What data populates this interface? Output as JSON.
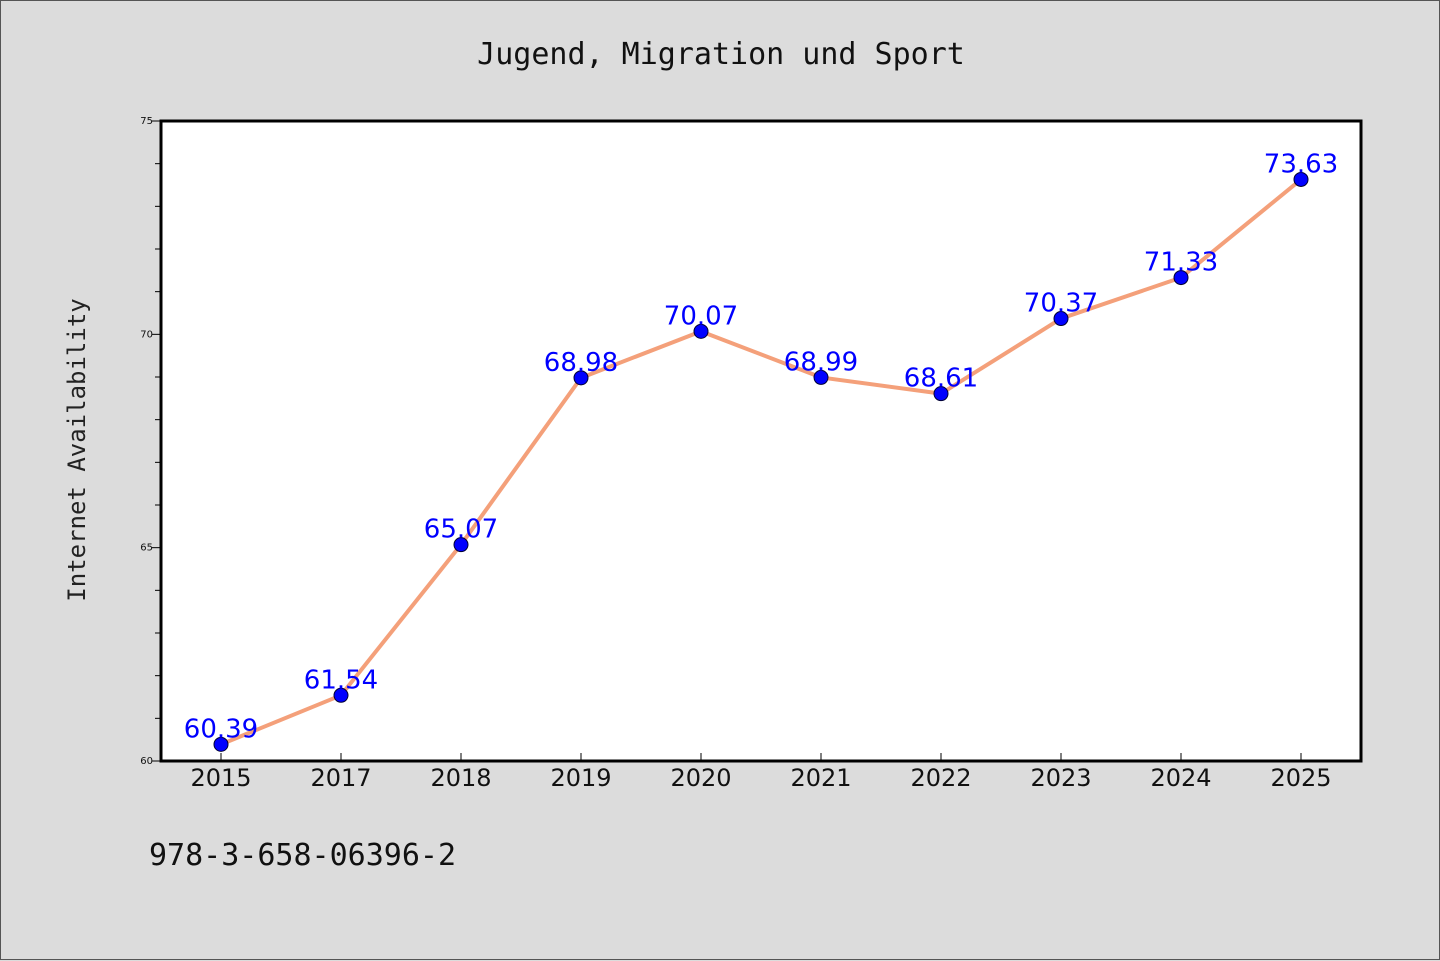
{
  "chart_data": {
    "type": "line",
    "title": "Jugend, Migration und Sport",
    "xlabel": "",
    "ylabel": "Internet Availability",
    "categories": [
      "2015",
      "2017",
      "2018",
      "2019",
      "2020",
      "2021",
      "2022",
      "2023",
      "2024",
      "2025"
    ],
    "series": [
      {
        "values": [
          60.39,
          61.54,
          65.07,
          68.98,
          70.07,
          68.99,
          68.61,
          70.37,
          71.33,
          73.63
        ]
      }
    ],
    "data_labels": [
      "60.39",
      "61.54",
      "65.07",
      "68.98",
      "70.07",
      "68.99",
      "68.61",
      "70.37",
      "71.33",
      "73.63"
    ],
    "ylim": [
      60,
      75
    ],
    "yticks_major": [
      60,
      65,
      70,
      75
    ],
    "ytick_labels": [
      "60",
      "65",
      "70",
      "75"
    ],
    "grid": false,
    "line_color": "#f4a07a",
    "marker_color": "#0000ff",
    "label_color": "#0000ff"
  },
  "footer": {
    "isbn": "978-3-658-06396-2"
  }
}
